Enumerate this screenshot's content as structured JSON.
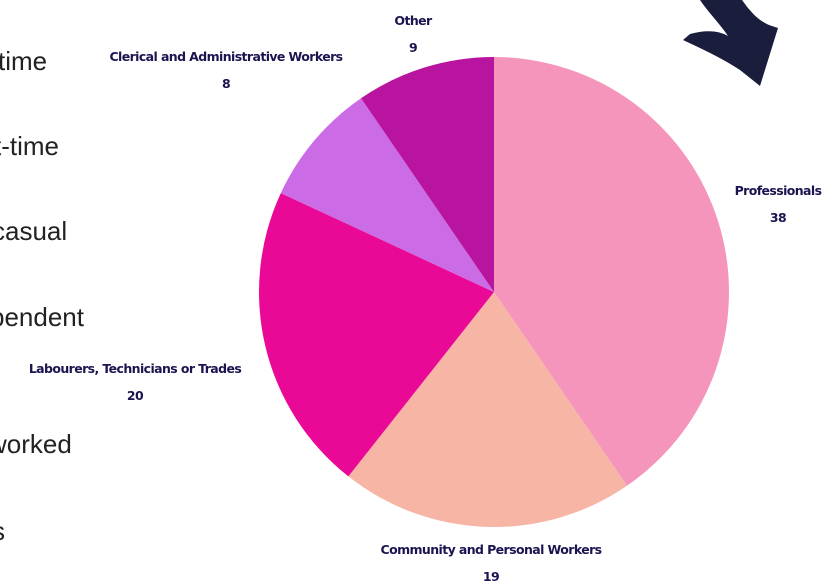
{
  "left_list": [
    "time",
    "t-time",
    "casual",
    "pendent",
    "worked",
    "s"
  ],
  "chart_data": {
    "type": "pie",
    "categories": [
      "Professionals",
      "Community and Personal Workers",
      "Labourers, Technicians or Trades",
      "Clerical and Administrative Workers",
      "Other"
    ],
    "values": [
      38,
      19,
      20,
      8,
      9
    ],
    "colors": [
      "#f595bb",
      "#f7b5a5",
      "#ea0896",
      "#cb6be6",
      "#b9149f"
    ]
  }
}
